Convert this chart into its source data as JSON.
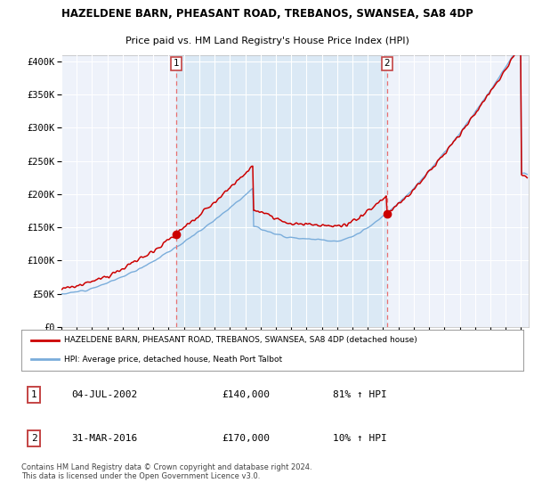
{
  "title": "HAZELDENE BARN, PHEASANT ROAD, TREBANOS, SWANSEA, SA8 4DP",
  "subtitle": "Price paid vs. HM Land Registry's House Price Index (HPI)",
  "ylabel_ticks": [
    "£0",
    "£50K",
    "£100K",
    "£150K",
    "£200K",
    "£250K",
    "£300K",
    "£350K",
    "£400K"
  ],
  "ytick_values": [
    0,
    50000,
    100000,
    150000,
    200000,
    250000,
    300000,
    350000,
    400000
  ],
  "ylim": [
    0,
    420000
  ],
  "xlim_start": 1995.0,
  "xlim_end": 2025.5,
  "sale1_x": 2002.5,
  "sale1_y": 140000,
  "sale1_label": "04-JUL-2002",
  "sale1_price": "£140,000",
  "sale1_hpi": "81% ↑ HPI",
  "sale2_x": 2016.25,
  "sale2_y": 170000,
  "sale2_label": "31-MAR-2016",
  "sale2_price": "£170,000",
  "sale2_hpi": "10% ↑ HPI",
  "red_line_color": "#cc0000",
  "blue_line_color": "#7aaddb",
  "vline_dashed_color": "#e87070",
  "vline_solid_color": "#cc0000",
  "shade_color": "#d8e8f5",
  "background_color": "#ffffff",
  "plot_bg_color": "#eef2fa",
  "grid_color": "#ffffff",
  "legend_label_red": "HAZELDENE BARN, PHEASANT ROAD, TREBANOS, SWANSEA, SA8 4DP (detached house)",
  "legend_label_blue": "HPI: Average price, detached house, Neath Port Talbot",
  "footer": "Contains HM Land Registry data © Crown copyright and database right 2024.\nThis data is licensed under the Open Government Licence v3.0."
}
